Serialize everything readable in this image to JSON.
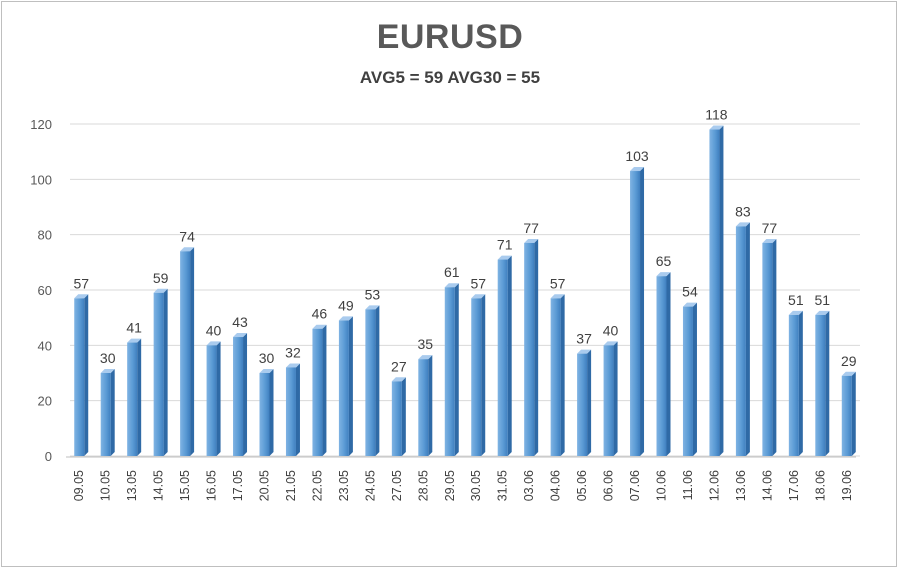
{
  "chart_data": {
    "type": "bar",
    "title": "EURUSD",
    "subtitle": "AVG5 = 59 AVG30 = 55",
    "categories": [
      "09.05",
      "10.05",
      "13.05",
      "14.05",
      "15.05",
      "16.05",
      "17.05",
      "20.05",
      "21.05",
      "22.05",
      "23.05",
      "24.05",
      "27.05",
      "28.05",
      "29.05",
      "30.05",
      "31.05",
      "03.06",
      "04.06",
      "05.06",
      "06.06",
      "07.06",
      "10.06",
      "11.06",
      "12.06",
      "13.06",
      "14.06",
      "17.06",
      "18.06",
      "19.06"
    ],
    "values": [
      57,
      30,
      41,
      59,
      74,
      40,
      43,
      30,
      32,
      46,
      49,
      53,
      27,
      35,
      61,
      57,
      71,
      77,
      57,
      37,
      40,
      103,
      65,
      54,
      118,
      83,
      77,
      51,
      51,
      29
    ],
    "yticks": [
      "0",
      "20",
      "40",
      "60",
      "80",
      "100",
      "120"
    ],
    "ylim": [
      0,
      120
    ],
    "grid": true,
    "bar_color": "#5b9bd5",
    "xlabel": "",
    "ylabel": ""
  }
}
